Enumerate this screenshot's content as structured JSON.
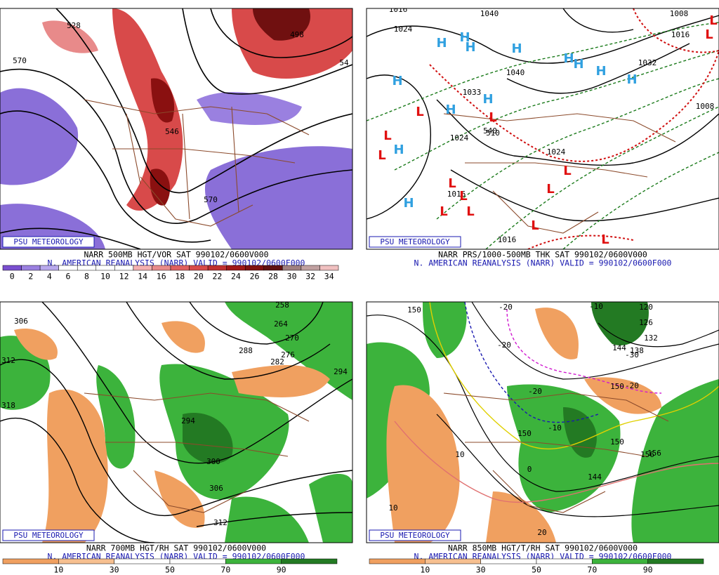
{
  "panels": [
    {
      "label": "PSU METEOROLOGY",
      "title": "NARR 500MB HGT/VOR SAT 990102/0600V000",
      "subtitle": "N. AMERICAN REANALYSIS (NARR) VALID = 990102/0600F000",
      "contour_labels": [
        "528",
        "570",
        "498",
        "54",
        "546",
        "570"
      ],
      "colorbar_labels": [
        "0",
        "2",
        "4",
        "6",
        "8",
        "10",
        "12",
        "14",
        "16",
        "18",
        "20",
        "22",
        "24",
        "26",
        "28",
        "30",
        "32",
        "34"
      ]
    },
    {
      "label": "PSU METEOROLOGY",
      "title": "NARR PRS/1000-500MB THK SAT 990102/0600V000",
      "subtitle": "N. AMERICAN REANALYSIS (NARR) VALID = 990102/0600F000",
      "contour_labels": [
        "1016",
        "1024",
        "1040",
        "1008",
        "1016",
        "1032",
        "1040",
        "1033",
        "540",
        "1024",
        "510",
        "1024",
        "1016",
        "1016",
        "1008"
      ],
      "highs": [
        "H",
        "H",
        "H",
        "H",
        "H",
        "H",
        "H",
        "H",
        "H",
        "H",
        "H",
        "H",
        "H"
      ],
      "lows": [
        "L",
        "L",
        "L",
        "L",
        "L",
        "L",
        "L",
        "L",
        "L",
        "L",
        "L",
        "L",
        "L",
        "L"
      ]
    },
    {
      "label": "PSU METEOROLOGY",
      "title": "NARR 700MB HGT/RH SAT 990102/0600V000",
      "subtitle": "N. AMERICAN REANALYSIS (NARR) VALID = 990102/0600F000",
      "contour_labels": [
        "306",
        "312",
        "318",
        "258",
        "264",
        "270",
        "276",
        "288",
        "282",
        "294",
        "294",
        "300",
        "306",
        "312"
      ],
      "colorbar_labels": [
        "10",
        "30",
        "50",
        "70",
        "90"
      ]
    },
    {
      "label": "PSU METEOROLOGY",
      "title": "NARR 850MB HGT/T/RH SAT 990102/0600V000",
      "subtitle": "N. AMERICAN REANALYSIS (NARR) VALID = 990102/0600F000",
      "contour_labels": [
        "150",
        "-20",
        "-10",
        "120",
        "126",
        "132",
        "138",
        "144",
        "-20",
        "-30",
        "-20",
        "-20",
        "150",
        "-10",
        "156",
        "150",
        "10",
        "150",
        "156",
        "144",
        "10",
        "20",
        "0"
      ],
      "colorbar_labels": [
        "10",
        "30",
        "50",
        "70",
        "90"
      ]
    }
  ]
}
